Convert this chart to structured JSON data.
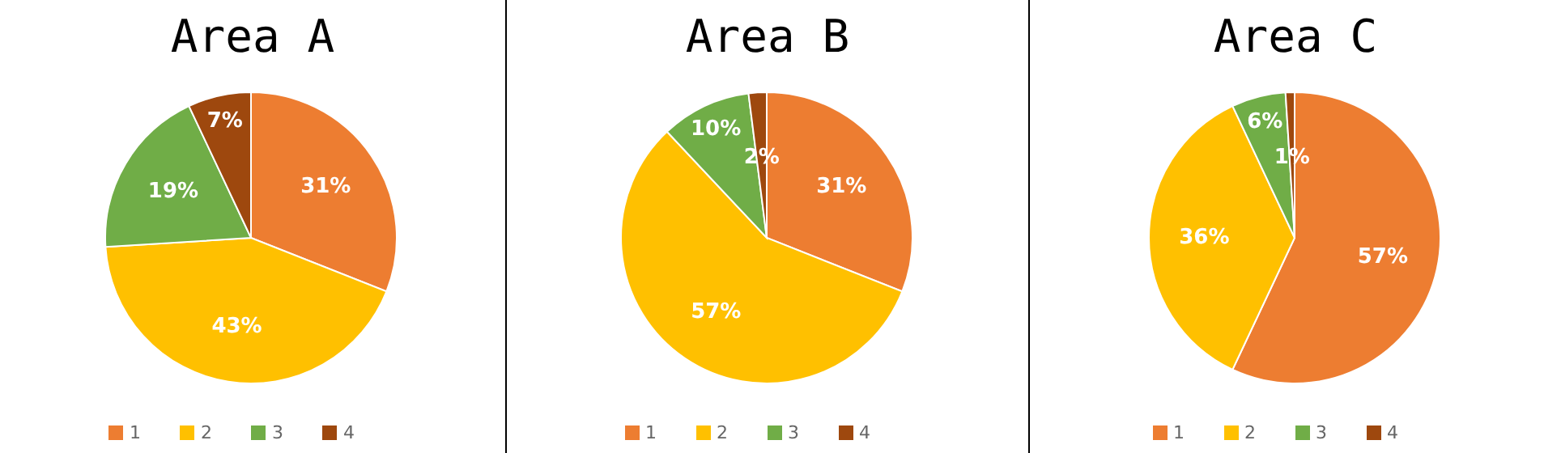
{
  "chart_data": [
    {
      "type": "pie",
      "title": "Area A",
      "categories": [
        "1",
        "2",
        "3",
        "4"
      ],
      "values": [
        31,
        43,
        19,
        7
      ],
      "colors": [
        "#ed7d31",
        "#ffc000",
        "#70ad47",
        "#9e480e"
      ],
      "value_labels": [
        "31%",
        "43%",
        "19%",
        "7%"
      ],
      "legend": "bottom"
    },
    {
      "type": "pie",
      "title": "Area B",
      "categories": [
        "1",
        "2",
        "3",
        "4"
      ],
      "values": [
        31,
        57,
        10,
        2
      ],
      "colors": [
        "#ed7d31",
        "#ffc000",
        "#70ad47",
        "#9e480e"
      ],
      "value_labels": [
        "31%",
        "57%",
        "10%",
        "2%"
      ],
      "legend": "bottom"
    },
    {
      "type": "pie",
      "title": "Area C",
      "categories": [
        "1",
        "2",
        "3",
        "4"
      ],
      "values": [
        57,
        36,
        6,
        1
      ],
      "colors": [
        "#ed7d31",
        "#ffc000",
        "#70ad47",
        "#9e480e"
      ],
      "value_labels": [
        "57%",
        "36%",
        "6%",
        "1%"
      ],
      "legend": "bottom"
    }
  ]
}
